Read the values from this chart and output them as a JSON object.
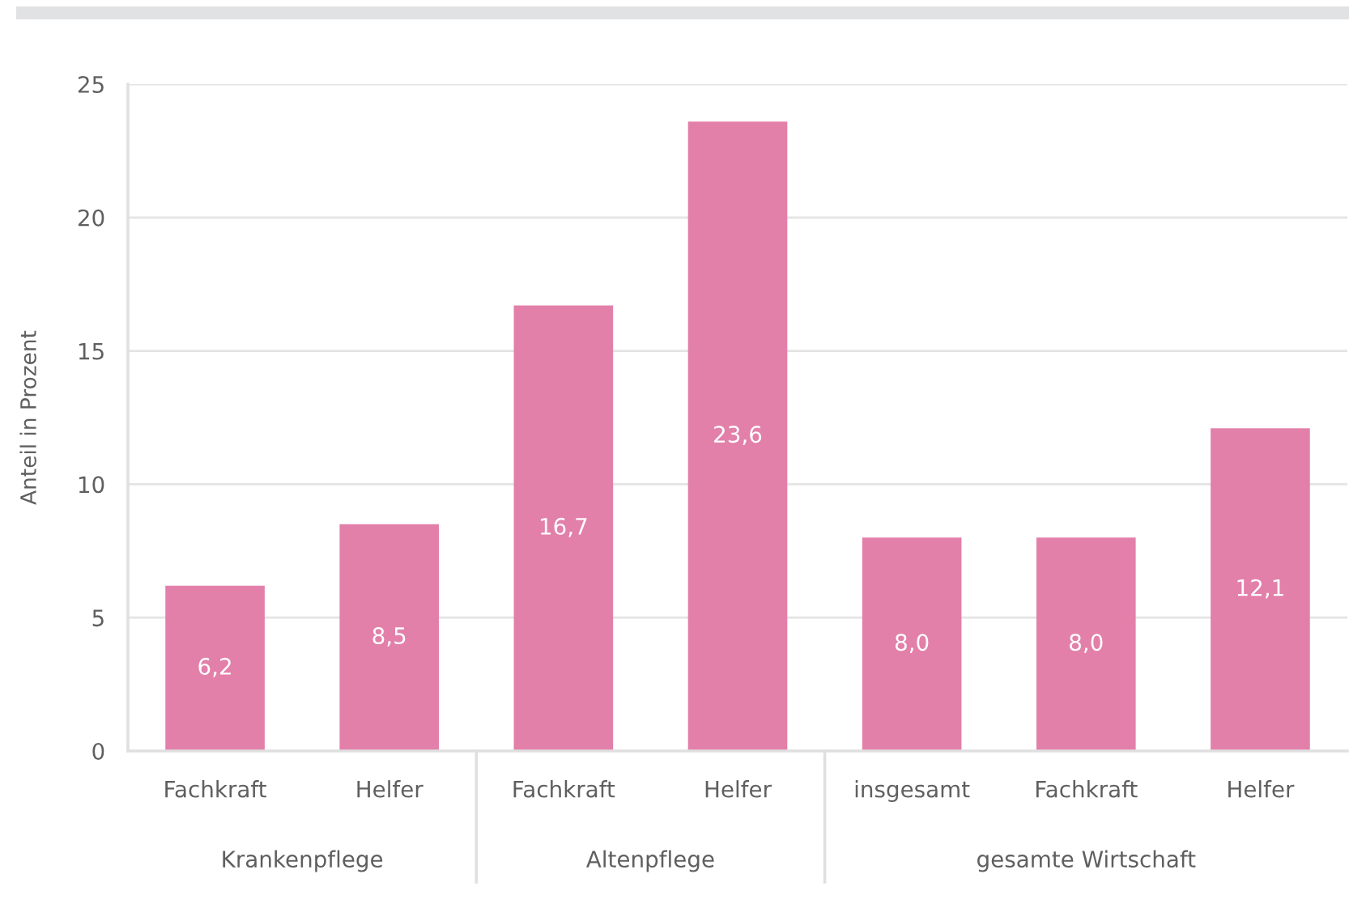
{
  "chart_data": {
    "type": "bar",
    "categories": [
      "Fachkraft",
      "Helfer",
      "Fachkraft",
      "Helfer",
      "insgesamt",
      "Fachkraft",
      "Helfer"
    ],
    "values": [
      6.2,
      8.5,
      16.7,
      23.6,
      8.0,
      8.0,
      12.1
    ],
    "value_labels": [
      "6,2",
      "8,5",
      "16,7",
      "23,6",
      "8,0",
      "8,0",
      "12,1"
    ],
    "color": "#e280aa",
    "ylabel": "Anteil in Prozent",
    "ylim": [
      0,
      25
    ],
    "yticks": [
      0,
      5,
      10,
      15,
      20,
      25
    ],
    "grid": "y",
    "annotations": [
      "Krankenpflege",
      "Altenpflege",
      "gesamte Wirtschaft"
    ]
  }
}
